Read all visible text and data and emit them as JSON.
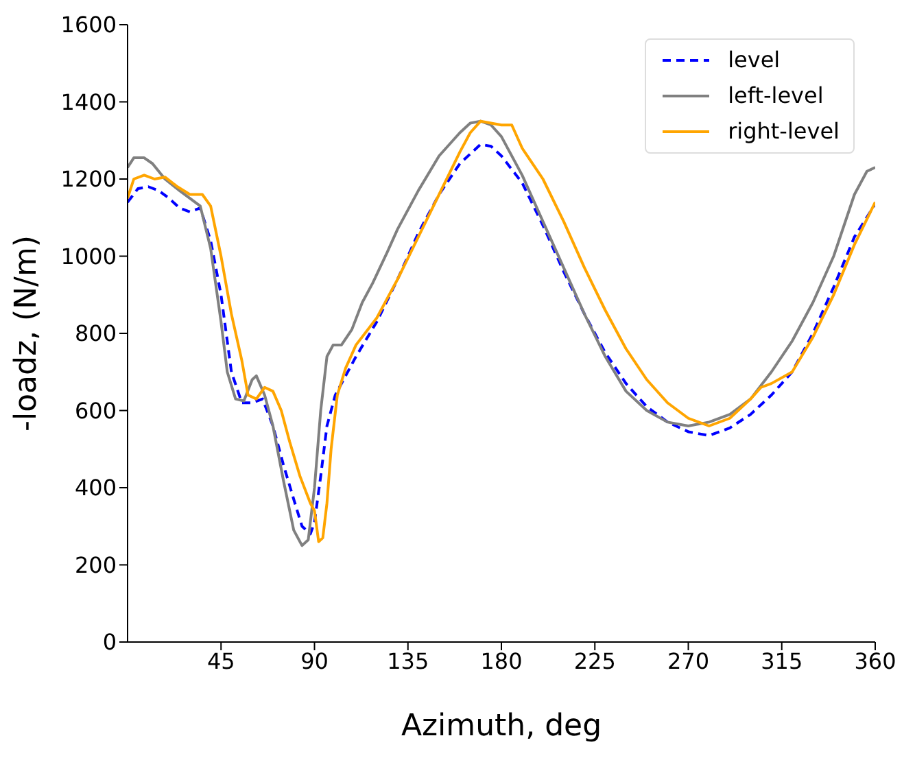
{
  "chart_data": {
    "type": "line",
    "xlabel": "Azimuth, deg",
    "ylabel": "-loadz, (N/m)",
    "xlim": [
      0,
      360
    ],
    "xticks": [
      45,
      90,
      135,
      180,
      225,
      270,
      315,
      360
    ],
    "ylim": [
      0,
      1600
    ],
    "yticks": [
      0,
      200,
      400,
      600,
      800,
      1000,
      1200,
      1400,
      1600
    ],
    "grid": false,
    "legend": "top right",
    "marker": "none",
    "series": [
      {
        "name": "level",
        "color": "#0000ff",
        "line_style": "dashed",
        "x": [
          0,
          5,
          10,
          15,
          20,
          25,
          30,
          35,
          40,
          45,
          50,
          55,
          60,
          65,
          70,
          75,
          80,
          84,
          88,
          90,
          93,
          96,
          100,
          105,
          110,
          120,
          130,
          140,
          150,
          160,
          170,
          175,
          180,
          190,
          200,
          210,
          220,
          230,
          240,
          250,
          260,
          270,
          280,
          290,
          300,
          310,
          320,
          330,
          340,
          350,
          360
        ],
        "values": [
          1140,
          1175,
          1180,
          1170,
          1150,
          1125,
          1115,
          1125,
          1040,
          900,
          700,
          620,
          620,
          630,
          560,
          460,
          370,
          300,
          280,
          310,
          430,
          560,
          640,
          690,
          740,
          830,
          940,
          1060,
          1160,
          1240,
          1290,
          1285,
          1260,
          1190,
          1080,
          960,
          850,
          750,
          670,
          610,
          570,
          545,
          535,
          555,
          590,
          640,
          700,
          800,
          920,
          1050,
          1135
        ]
      },
      {
        "name": "left-level",
        "color": "#808080",
        "line_style": "solid",
        "x": [
          0,
          3,
          8,
          12,
          18,
          25,
          30,
          35,
          40,
          45,
          48,
          52,
          56,
          60,
          62,
          66,
          70,
          75,
          80,
          84,
          87,
          90,
          93,
          96,
          99,
          103,
          108,
          113,
          118,
          125,
          130,
          140,
          150,
          160,
          165,
          170,
          175,
          180,
          190,
          200,
          210,
          220,
          230,
          240,
          250,
          260,
          270,
          280,
          290,
          300,
          310,
          320,
          330,
          340,
          350,
          356,
          360
        ],
        "values": [
          1230,
          1255,
          1255,
          1240,
          1200,
          1170,
          1150,
          1130,
          1020,
          830,
          700,
          630,
          625,
          680,
          690,
          640,
          560,
          420,
          290,
          250,
          265,
          400,
          600,
          740,
          770,
          770,
          810,
          880,
          930,
          1010,
          1070,
          1170,
          1260,
          1320,
          1345,
          1350,
          1340,
          1310,
          1210,
          1090,
          970,
          850,
          740,
          650,
          600,
          570,
          560,
          570,
          590,
          630,
          700,
          780,
          880,
          1000,
          1160,
          1220,
          1230
        ]
      },
      {
        "name": "right-level",
        "color": "#ffa500",
        "line_style": "solid",
        "x": [
          0,
          3,
          8,
          13,
          18,
          24,
          30,
          36,
          40,
          45,
          50,
          55,
          58,
          62,
          66,
          70,
          74,
          78,
          83,
          88,
          90,
          92,
          94,
          96,
          98,
          101,
          105,
          110,
          120,
          130,
          140,
          150,
          160,
          165,
          170,
          175,
          180,
          185,
          190,
          200,
          210,
          220,
          230,
          240,
          250,
          260,
          270,
          280,
          290,
          300,
          305,
          310,
          320,
          330,
          340,
          350,
          360
        ],
        "values": [
          1150,
          1200,
          1210,
          1200,
          1205,
          1180,
          1160,
          1160,
          1130,
          1000,
          850,
          730,
          640,
          630,
          660,
          650,
          600,
          520,
          430,
          360,
          340,
          260,
          270,
          360,
          500,
          640,
          710,
          770,
          840,
          940,
          1050,
          1160,
          1270,
          1320,
          1350,
          1345,
          1340,
          1340,
          1280,
          1200,
          1090,
          970,
          860,
          760,
          680,
          620,
          580,
          560,
          580,
          630,
          660,
          670,
          700,
          790,
          900,
          1030,
          1140
        ]
      }
    ]
  }
}
